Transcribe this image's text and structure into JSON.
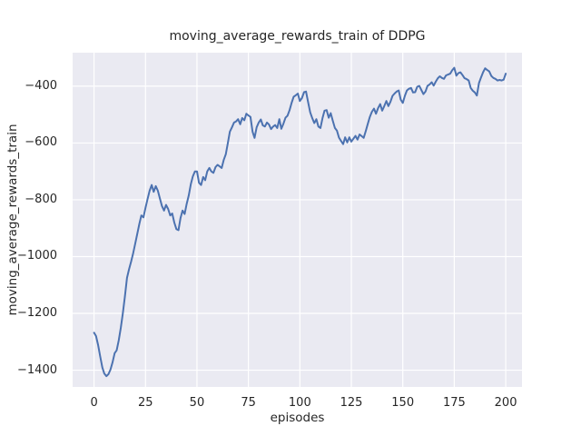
{
  "chart_data": {
    "type": "line",
    "title": "moving_average_rewards_train of DDPG",
    "xlabel": "episodes",
    "ylabel": "moving_average_rewards_train",
    "x_ticks": [
      0,
      25,
      50,
      75,
      100,
      125,
      150,
      175,
      200
    ],
    "y_ticks": [
      -400,
      -600,
      -800,
      -1000,
      -1200,
      -1400
    ],
    "xlim": [
      -10.4,
      207.9
    ],
    "ylim": [
      -1459,
      -282
    ],
    "grid": true,
    "legend": "none",
    "colors": {
      "figure_background": "#ffffff",
      "axes_background": "#eaeaf2",
      "grid": "#ffffff",
      "line": "#4c72b0",
      "text": "#262626"
    },
    "series": [
      {
        "name": "moving_average_rewards_train",
        "x_start": 0,
        "x_step": 1,
        "values": [
          -1268,
          -1280,
          -1312,
          -1352,
          -1390,
          -1412,
          -1421,
          -1414,
          -1398,
          -1372,
          -1340,
          -1330,
          -1295,
          -1250,
          -1200,
          -1140,
          -1075,
          -1045,
          -1018,
          -988,
          -955,
          -920,
          -885,
          -855,
          -862,
          -828,
          -798,
          -768,
          -748,
          -772,
          -752,
          -768,
          -795,
          -822,
          -838,
          -818,
          -832,
          -855,
          -848,
          -880,
          -903,
          -907,
          -865,
          -838,
          -850,
          -815,
          -785,
          -745,
          -718,
          -700,
          -700,
          -740,
          -748,
          -720,
          -731,
          -700,
          -688,
          -700,
          -705,
          -685,
          -677,
          -682,
          -688,
          -660,
          -640,
          -600,
          -560,
          -545,
          -528,
          -524,
          -516,
          -534,
          -512,
          -520,
          -497,
          -503,
          -508,
          -560,
          -582,
          -545,
          -528,
          -517,
          -538,
          -542,
          -528,
          -535,
          -551,
          -542,
          -537,
          -547,
          -516,
          -550,
          -532,
          -511,
          -504,
          -484,
          -458,
          -437,
          -432,
          -426,
          -452,
          -442,
          -421,
          -419,
          -456,
          -492,
          -512,
          -530,
          -516,
          -542,
          -547,
          -512,
          -486,
          -484,
          -511,
          -495,
          -522,
          -547,
          -556,
          -581,
          -593,
          -604,
          -580,
          -598,
          -580,
          -595,
          -585,
          -575,
          -588,
          -570,
          -576,
          -582,
          -558,
          -532,
          -508,
          -490,
          -479,
          -497,
          -477,
          -463,
          -486,
          -470,
          -452,
          -470,
          -455,
          -434,
          -426,
          -419,
          -415,
          -447,
          -459,
          -434,
          -415,
          -409,
          -406,
          -422,
          -421,
          -402,
          -399,
          -413,
          -428,
          -419,
          -399,
          -394,
          -386,
          -398,
          -384,
          -372,
          -365,
          -371,
          -374,
          -362,
          -359,
          -356,
          -344,
          -335,
          -363,
          -354,
          -351,
          -361,
          -372,
          -375,
          -380,
          -406,
          -416,
          -422,
          -433,
          -389,
          -369,
          -351,
          -337,
          -343,
          -348,
          -364,
          -371,
          -374,
          -380,
          -378,
          -380,
          -377,
          -356
        ]
      }
    ]
  }
}
